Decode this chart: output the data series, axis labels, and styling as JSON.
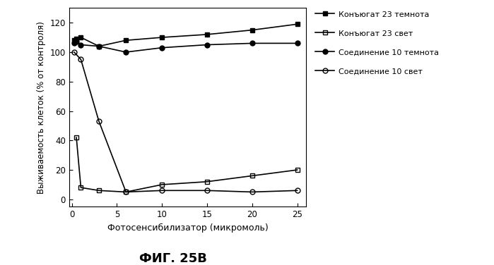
{
  "series": [
    {
      "label": "Конъюгат 23 темнота",
      "x": [
        0.25,
        0.5,
        1,
        3,
        6,
        10,
        15,
        20,
        25
      ],
      "y": [
        108,
        109,
        110,
        104,
        108,
        110,
        112,
        115,
        119
      ],
      "marker": "s",
      "fillstyle": "full",
      "color": "#000000",
      "linestyle": "-",
      "linewidth": 1.2,
      "markersize": 5
    },
    {
      "label": "Конъюгат 23 свет",
      "x": [
        0.5,
        1,
        3,
        6,
        10,
        15,
        20,
        25
      ],
      "y": [
        42,
        8,
        6,
        5,
        10,
        12,
        16,
        20
      ],
      "marker": "s",
      "fillstyle": "none",
      "color": "#000000",
      "linestyle": "-",
      "linewidth": 1.2,
      "markersize": 5
    },
    {
      "label": "Соединение 10 темнота",
      "x": [
        0.25,
        0.5,
        1,
        3,
        6,
        10,
        15,
        20,
        25
      ],
      "y": [
        106,
        107,
        105,
        104,
        100,
        103,
        105,
        106,
        106
      ],
      "marker": "o",
      "fillstyle": "full",
      "color": "#000000",
      "linestyle": "-",
      "linewidth": 1.2,
      "markersize": 5
    },
    {
      "label": "Соединение 10 свет",
      "x": [
        0.25,
        1,
        3,
        6,
        10,
        15,
        20,
        25
      ],
      "y": [
        100,
        95,
        53,
        5,
        6,
        6,
        5,
        6
      ],
      "marker": "o",
      "fillstyle": "none",
      "color": "#000000",
      "linestyle": "-",
      "linewidth": 1.2,
      "markersize": 5
    }
  ],
  "xlabel": "Фотосенсибилизатор (микромоль)",
  "ylabel": "Выживаемость клеток (% от контроля)",
  "title": "ФИГ. 25В",
  "xlim": [
    -0.3,
    26
  ],
  "ylim": [
    -5,
    130
  ],
  "xticks": [
    0,
    5,
    10,
    15,
    20,
    25
  ],
  "yticks": [
    0,
    20,
    40,
    60,
    80,
    100,
    120
  ],
  "figsize": [
    6.99,
    3.76
  ],
  "dpi": 100,
  "background_color": "#ffffff"
}
